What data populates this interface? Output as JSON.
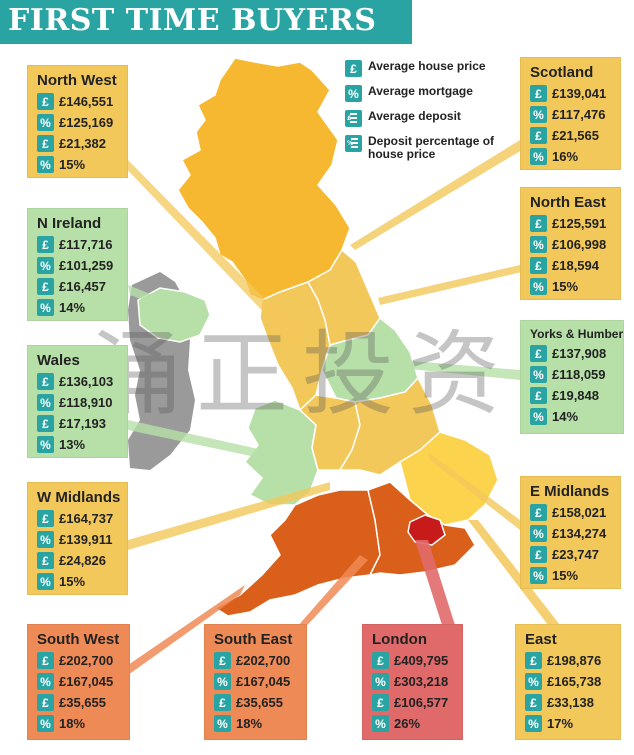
{
  "title": "FIRST TIME BUYERS",
  "watermark": "涌正投资",
  "legend": [
    {
      "icon": "pound-icon",
      "label": "Average house price"
    },
    {
      "icon": "percent-icon",
      "label": "Average mortgage"
    },
    {
      "icon": "deposit-icon",
      "label": "Average deposit"
    },
    {
      "icon": "deposit-percent-icon",
      "label": "Deposit percentage of house price"
    }
  ],
  "colors": {
    "title_bar": "#2aa3a3",
    "low_band": "#b7e0a8",
    "mid_band": "#f3c85a",
    "high_band": "#ee8a55",
    "london": "#e06a6a",
    "ireland_grey": "#9a9a9a"
  },
  "regions": {
    "north_west": {
      "name": "North West",
      "price": "£146,551",
      "mortgage": "£125,169",
      "deposit": "£21,382",
      "deposit_pct": "15%"
    },
    "scotland": {
      "name": "Scotland",
      "price": "£139,041",
      "mortgage": "£117,476",
      "deposit": "£21,565",
      "deposit_pct": "16%"
    },
    "n_ireland": {
      "name": "N Ireland",
      "price": "£117,716",
      "mortgage": "£101,259",
      "deposit": "£16,457",
      "deposit_pct": "14%"
    },
    "north_east": {
      "name": "North East",
      "price": "£125,591",
      "mortgage": "£106,998",
      "deposit": "£18,594",
      "deposit_pct": "15%"
    },
    "wales": {
      "name": "Wales",
      "price": "£136,103",
      "mortgage": "£118,910",
      "deposit": "£17,193",
      "deposit_pct": "13%"
    },
    "yorks_humber": {
      "name": "Yorks & Humber",
      "price": "£137,908",
      "mortgage": "£118,059",
      "deposit": "£19,848",
      "deposit_pct": "14%"
    },
    "w_midlands": {
      "name": "W Midlands",
      "price": "£164,737",
      "mortgage": "£139,911",
      "deposit": "£24,826",
      "deposit_pct": "15%"
    },
    "e_midlands": {
      "name": "E Midlands",
      "price": "£158,021",
      "mortgage": "£134,274",
      "deposit": "£23,747",
      "deposit_pct": "15%"
    },
    "south_west": {
      "name": "South West",
      "price": "£202,700",
      "mortgage": "£167,045",
      "deposit": "£35,655",
      "deposit_pct": "18%"
    },
    "south_east": {
      "name": "South East",
      "price": "£202,700",
      "mortgage": "£167,045",
      "deposit": "£35,655",
      "deposit_pct": "18%"
    },
    "london": {
      "name": "London",
      "price": "£409,795",
      "mortgage": "£303,218",
      "deposit": "£106,577",
      "deposit_pct": "26%"
    },
    "east": {
      "name": "East",
      "price": "£198,876",
      "mortgage": "£165,738",
      "deposit": "£33,138",
      "deposit_pct": "17%"
    }
  }
}
